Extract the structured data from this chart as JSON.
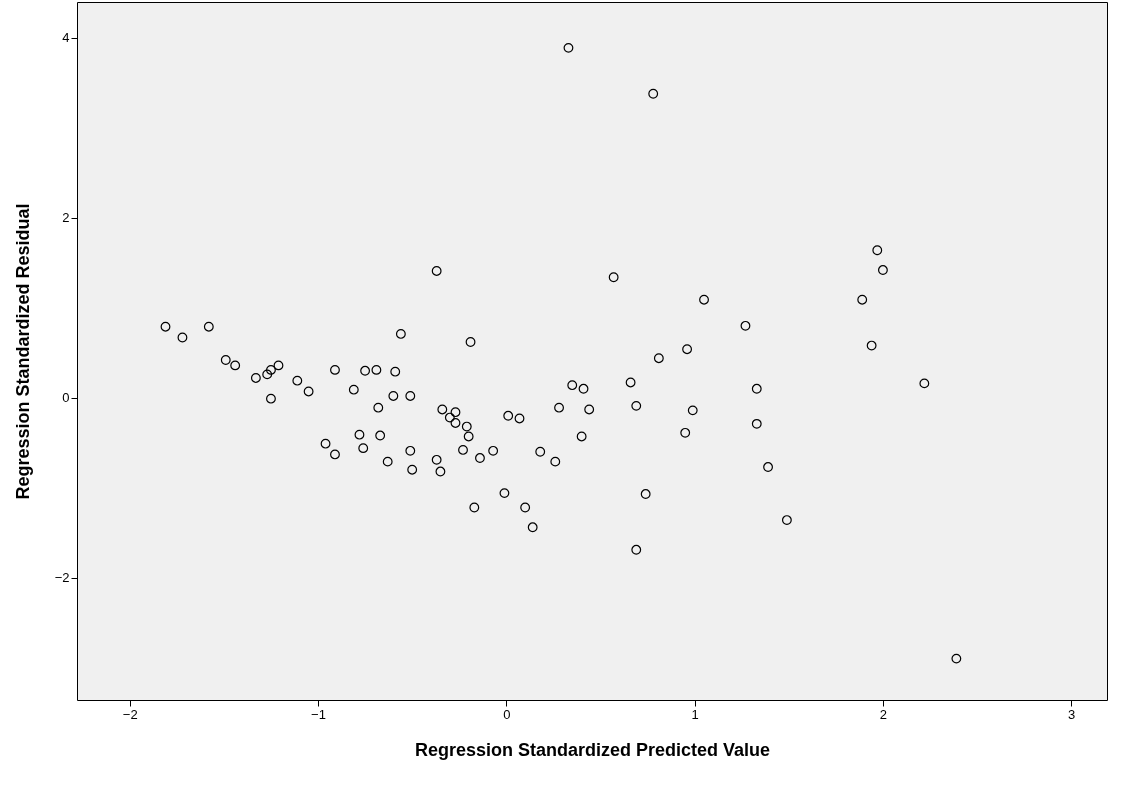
{
  "chart_data": {
    "type": "scatter",
    "xlabel": "Regression Standardized Predicted Value",
    "ylabel": "Regression Standardized Residual",
    "xlim": [
      -2.28,
      3.19
    ],
    "ylim": [
      -3.36,
      4.4
    ],
    "xticks": [
      -2,
      -1,
      0,
      1,
      2,
      3
    ],
    "yticks": [
      -2,
      0,
      2,
      4
    ],
    "grid": false,
    "marker": "circle",
    "series": [
      {
        "color": "#000000",
        "x": [
          -1.81,
          -1.72,
          -1.58,
          -1.49,
          -1.44,
          -1.33,
          -1.27,
          -1.25,
          -1.21,
          -1.25,
          -1.11,
          -1.05,
          -0.96,
          -0.91,
          -0.91,
          -0.81,
          -0.78,
          -0.76,
          -0.75,
          -0.69,
          -0.68,
          -0.67,
          -0.63,
          -0.6,
          -0.59,
          -0.56,
          -0.51,
          -0.51,
          -0.5,
          -0.37,
          -0.37,
          -0.35,
          -0.34,
          -0.3,
          -0.27,
          -0.27,
          -0.23,
          -0.21,
          -0.2,
          -0.19,
          -0.17,
          -0.14,
          -0.07,
          -0.01,
          0.01,
          0.07,
          0.1,
          0.14,
          0.18,
          0.26,
          0.28,
          0.33,
          0.35,
          0.4,
          0.41,
          0.44,
          0.57,
          0.66,
          0.69,
          0.69,
          0.74,
          0.78,
          0.81,
          0.95,
          0.96,
          0.99,
          1.05,
          1.27,
          1.33,
          1.33,
          1.39,
          1.49,
          1.89,
          1.94,
          1.97,
          2.0,
          2.22,
          2.39
        ],
        "values": [
          0.79,
          0.67,
          0.79,
          0.42,
          0.36,
          0.22,
          0.26,
          0.31,
          0.36,
          -0.01,
          0.19,
          0.07,
          -0.51,
          -0.63,
          0.31,
          0.09,
          -0.41,
          -0.56,
          0.3,
          0.31,
          -0.11,
          -0.42,
          -0.71,
          0.02,
          0.29,
          0.71,
          0.02,
          -0.59,
          -0.8,
          -0.69,
          1.41,
          -0.82,
          -0.13,
          -0.22,
          -0.16,
          -0.28,
          -0.58,
          -0.32,
          -0.43,
          0.62,
          -1.22,
          -0.67,
          -0.59,
          -1.06,
          -0.2,
          -0.23,
          -1.22,
          -1.44,
          -0.6,
          -0.71,
          -0.11,
          3.89,
          0.14,
          -0.43,
          0.1,
          -0.13,
          1.34,
          0.17,
          -0.09,
          -1.69,
          -1.07,
          3.38,
          0.44,
          -0.39,
          0.54,
          -0.14,
          1.09,
          0.8,
          -0.29,
          0.1,
          -0.77,
          -1.36,
          1.09,
          0.58,
          1.64,
          1.42,
          0.16,
          -2.9
        ]
      }
    ]
  }
}
